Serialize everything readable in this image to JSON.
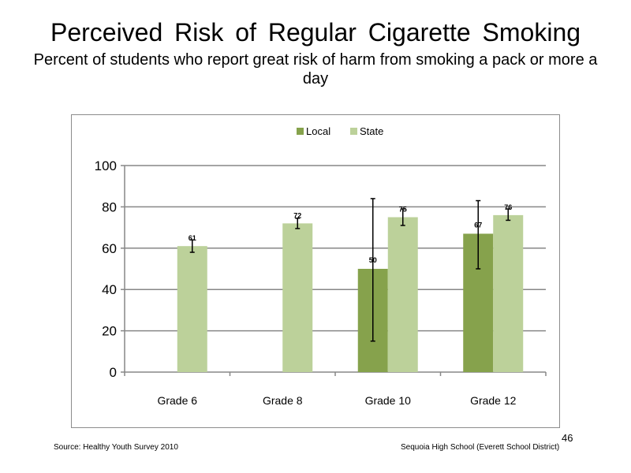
{
  "slide": {
    "title": "Perceived  Risk of Regular  Cigarette  Smoking",
    "subtitle": "Percent  of students  who report great risk of harm from smoking a pack or more a day",
    "source": "Source: Healthy Youth Survey 2010",
    "school": "Sequoia High School (Everett School District)",
    "page_number": "46"
  },
  "chart_data": {
    "type": "bar",
    "categories": [
      "Grade 6",
      "Grade 8",
      "Grade 10",
      "Grade 12"
    ],
    "series": [
      {
        "name": "Local",
        "color": "#86a24c",
        "values": [
          null,
          null,
          50,
          67
        ],
        "labels": [
          "",
          "",
          "50",
          "67"
        ],
        "error_low": [
          null,
          null,
          15,
          50
        ],
        "error_high": [
          null,
          null,
          84,
          83
        ]
      },
      {
        "name": "State",
        "color": "#bcd19a",
        "values": [
          61,
          72,
          75,
          76
        ],
        "labels": [
          "61",
          "72",
          "75",
          "76"
        ],
        "error_low": [
          58,
          69.5,
          71,
          73.5
        ],
        "error_high": [
          64,
          74.5,
          79,
          79
        ]
      }
    ],
    "ylim": [
      0,
      100
    ],
    "yticks": [
      0,
      20,
      40,
      60,
      80,
      100
    ],
    "grid": true,
    "legend": "top-center"
  }
}
